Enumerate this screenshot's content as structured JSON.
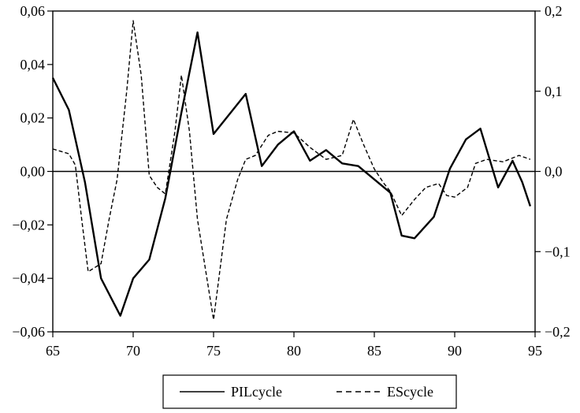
{
  "chart_data": {
    "type": "line",
    "title": "",
    "xlabel": "",
    "ylabel": "",
    "xlim": [
      65,
      95
    ],
    "ylim_left": [
      -0.06,
      0.06
    ],
    "ylim_right": [
      -0.2,
      0.2
    ],
    "grid": false,
    "legend_position": "bottom",
    "x_ticks": [
      "65",
      "70",
      "75",
      "80",
      "85",
      "90",
      "95"
    ],
    "y_left_ticks": [
      "0,06",
      "0,04",
      "0,02",
      "0,00",
      "−0,02",
      "−0,04",
      "−0,06"
    ],
    "y_right_ticks": [
      "0,2",
      "0,1",
      "0,0",
      "−0,1",
      "−0,2"
    ],
    "series": [
      {
        "name": "PILcycle",
        "axis": "left",
        "style": "solid",
        "points": [
          [
            65.0,
            0.035
          ],
          [
            66.0,
            0.023
          ],
          [
            67.0,
            -0.004
          ],
          [
            68.0,
            -0.04
          ],
          [
            69.2,
            -0.054
          ],
          [
            70.0,
            -0.04
          ],
          [
            71.0,
            -0.033
          ],
          [
            72.0,
            -0.01
          ],
          [
            73.0,
            0.022
          ],
          [
            74.0,
            0.052
          ],
          [
            75.0,
            0.014
          ],
          [
            77.0,
            0.029
          ],
          [
            78.0,
            0.002
          ],
          [
            79.0,
            0.01
          ],
          [
            80.0,
            0.015
          ],
          [
            81.0,
            0.004
          ],
          [
            82.0,
            0.008
          ],
          [
            83.0,
            0.003
          ],
          [
            84.0,
            0.002
          ],
          [
            86.0,
            -0.008
          ],
          [
            86.7,
            -0.024
          ],
          [
            87.5,
            -0.025
          ],
          [
            88.7,
            -0.017
          ],
          [
            89.7,
            0.001
          ],
          [
            90.7,
            0.012
          ],
          [
            91.6,
            0.016
          ],
          [
            92.7,
            -0.006
          ],
          [
            93.6,
            0.004
          ],
          [
            94.2,
            -0.004
          ],
          [
            94.7,
            -0.013
          ]
        ]
      },
      {
        "name": "EScycle",
        "axis": "right",
        "style": "dashed",
        "points": [
          [
            65.0,
            0.028
          ],
          [
            66.0,
            0.022
          ],
          [
            66.4,
            0.008
          ],
          [
            66.8,
            -0.06
          ],
          [
            67.2,
            -0.125
          ],
          [
            68.0,
            -0.115
          ],
          [
            68.5,
            -0.06
          ],
          [
            69.0,
            -0.01
          ],
          [
            69.6,
            0.1
          ],
          [
            70.0,
            0.188
          ],
          [
            70.5,
            0.12
          ],
          [
            71.0,
            -0.005
          ],
          [
            71.5,
            -0.02
          ],
          [
            72.0,
            -0.028
          ],
          [
            72.6,
            0.05
          ],
          [
            73.0,
            0.12
          ],
          [
            73.5,
            0.05
          ],
          [
            74.0,
            -0.06
          ],
          [
            75.0,
            -0.185
          ],
          [
            75.8,
            -0.06
          ],
          [
            76.5,
            -0.01
          ],
          [
            77.0,
            0.015
          ],
          [
            77.6,
            0.02
          ],
          [
            78.4,
            0.045
          ],
          [
            79.0,
            0.05
          ],
          [
            80.0,
            0.048
          ],
          [
            81.0,
            0.03
          ],
          [
            82.0,
            0.015
          ],
          [
            83.0,
            0.02
          ],
          [
            83.7,
            0.065
          ],
          [
            84.3,
            0.035
          ],
          [
            85.0,
            0.003
          ],
          [
            85.6,
            -0.015
          ],
          [
            86.0,
            -0.025
          ],
          [
            86.7,
            -0.055
          ],
          [
            87.5,
            -0.035
          ],
          [
            88.2,
            -0.02
          ],
          [
            89.0,
            -0.015
          ],
          [
            89.5,
            -0.03
          ],
          [
            90.0,
            -0.032
          ],
          [
            90.8,
            -0.02
          ],
          [
            91.3,
            0.01
          ],
          [
            92.0,
            0.015
          ],
          [
            93.0,
            0.012
          ],
          [
            94.0,
            0.02
          ],
          [
            94.7,
            0.015
          ]
        ]
      }
    ]
  },
  "legend": {
    "items": [
      {
        "name": "PILcycle",
        "style": "solid"
      },
      {
        "name": "EScycle",
        "style": "dashed"
      }
    ]
  }
}
